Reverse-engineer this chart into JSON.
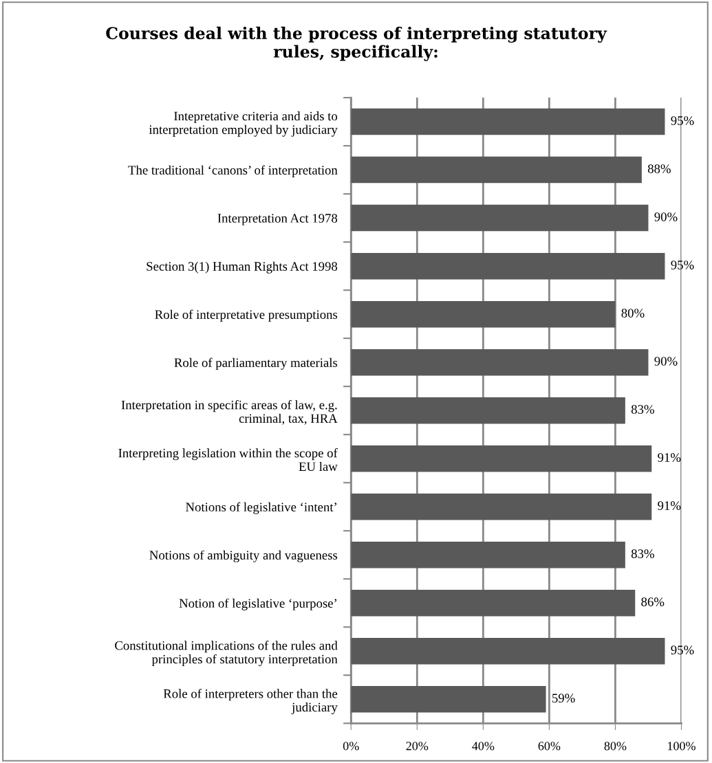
{
  "chart_data": {
    "type": "bar",
    "orientation": "horizontal",
    "title": "Courses deal with the process of interpreting statutory\nrules, specifically:",
    "categories": [
      "Intepretative criteria and aids to\ninterpretation employed by judiciary",
      "The traditional ‘canons’ of interpretation",
      "Interpretation Act 1978",
      "Section 3(1) Human Rights Act 1998",
      "Role of interpretative presumptions",
      "Role of parliamentary materials",
      "Interpretation in specific areas of law, e.g.\ncriminal, tax, HRA",
      "Interpreting legislation within the scope of\nEU law",
      "Notions of legislative ‘intent’",
      "Notions of ambiguity and vagueness",
      "Notion of legislative ‘purpose’",
      "Constitutional implications of the rules and\nprinciples of statutory interpretation",
      "Role of interpreters other than the\njudiciary"
    ],
    "values": [
      95,
      88,
      90,
      95,
      80,
      90,
      83,
      91,
      91,
      83,
      86,
      95,
      59
    ],
    "value_labels": [
      "95%",
      "88%",
      "90%",
      "95%",
      "80%",
      "90%",
      "83%",
      "91%",
      "91%",
      "83%",
      "86%",
      "95%",
      "59%"
    ],
    "color": "#595959",
    "xlim": [
      0,
      100
    ],
    "xticks": [
      {
        "value": 0,
        "label": "0%"
      },
      {
        "value": 20,
        "label": "20%"
      },
      {
        "value": 40,
        "label": "40%"
      },
      {
        "value": 60,
        "label": "60%"
      },
      {
        "value": 80,
        "label": "80%"
      },
      {
        "value": 100,
        "label": "100%"
      }
    ],
    "grid": "x"
  }
}
